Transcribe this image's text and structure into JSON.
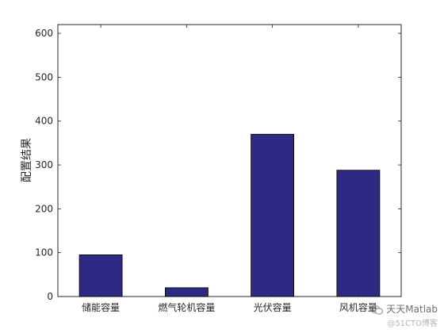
{
  "chart_data": {
    "type": "bar",
    "categories": [
      "储能容量",
      "燃气轮机容量",
      "光伏容量",
      "风机容量"
    ],
    "values": [
      95,
      20,
      370,
      288
    ],
    "title": "",
    "xlabel": "",
    "ylabel": "配置结果",
    "ylim": [
      0,
      620
    ],
    "yticks": [
      0,
      100,
      200,
      300,
      400,
      500,
      600
    ],
    "bar_color": "#2e2a83",
    "bar_edge_color": "#000000",
    "grid": false
  },
  "watermark": {
    "line1": "天天Matlab",
    "line2": "@51CTO博客"
  }
}
